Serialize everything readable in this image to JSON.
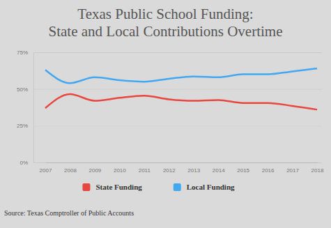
{
  "chart_data": {
    "type": "line",
    "title": [
      "Texas Public School Funding:",
      "State and Local Contributions Overtime"
    ],
    "source": "Source: Texas Comptroller of Public Accounts",
    "categories": [
      "2007",
      "2008",
      "2009",
      "2010",
      "2011",
      "2012",
      "2013",
      "2014",
      "2015",
      "2016",
      "2017",
      "2018"
    ],
    "series": [
      {
        "name": "State Funding",
        "color": "#e8473f",
        "line_style": "smooth",
        "values": [
          37,
          46.5,
          42,
          44,
          45.5,
          43,
          42,
          42.5,
          40.5,
          40.5,
          38.5,
          36
        ]
      },
      {
        "name": "Local Funding",
        "color": "#42a8f0",
        "line_style": "smooth",
        "values": [
          63,
          54,
          58,
          56,
          55,
          57,
          58.5,
          58,
          60,
          60,
          62,
          64
        ]
      }
    ],
    "ylim": [
      0,
      75
    ],
    "yticks": [
      {
        "value": 0,
        "label": "0%"
      },
      {
        "value": 25,
        "label": "25%"
      },
      {
        "value": 50,
        "label": "50%"
      },
      {
        "value": 75,
        "label": "75%"
      }
    ],
    "grid": true,
    "legend": "bottom"
  }
}
